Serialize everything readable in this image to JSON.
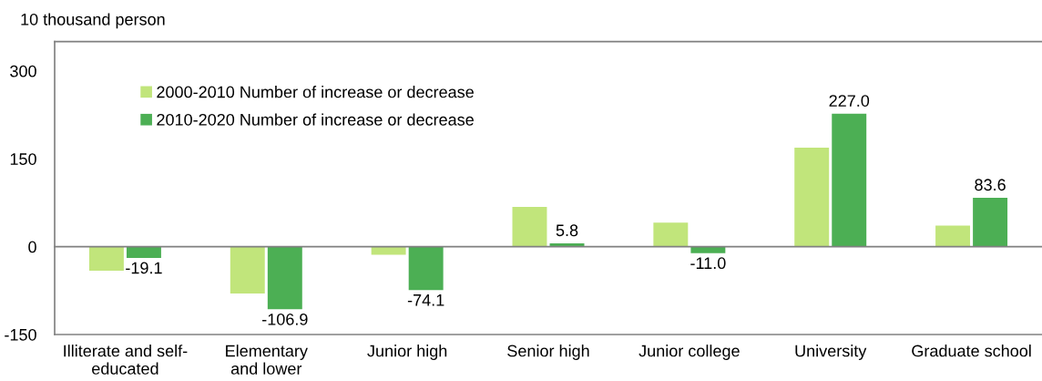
{
  "chart_data": {
    "type": "bar",
    "ylabel": "10 thousand person",
    "categories": [
      "Illiterate and self-\neducated",
      "Elementary\nand lower",
      "Junior high",
      "Senior high",
      "Junior college",
      "University",
      "Graduate school"
    ],
    "series": [
      {
        "name": "2000-2010 Number of increase or decrease",
        "color": "#c1e57b",
        "values": [
          -41,
          -80,
          -14,
          68,
          41,
          169,
          36
        ]
      },
      {
        "name": "2010-2020 Number of increase or decrease",
        "color": "#4caf54",
        "values": [
          -19.1,
          -106.9,
          -74.1,
          5.8,
          -11.0,
          227.0,
          83.6
        ],
        "value_labels": [
          "-19.1",
          "-106.9",
          "-74.1",
          "5.8",
          "-11.0",
          "227.0",
          "83.6"
        ]
      }
    ],
    "ylim": [
      -150,
      350
    ],
    "yticks": [
      -150,
      0,
      150,
      300
    ],
    "legend": "top left"
  }
}
